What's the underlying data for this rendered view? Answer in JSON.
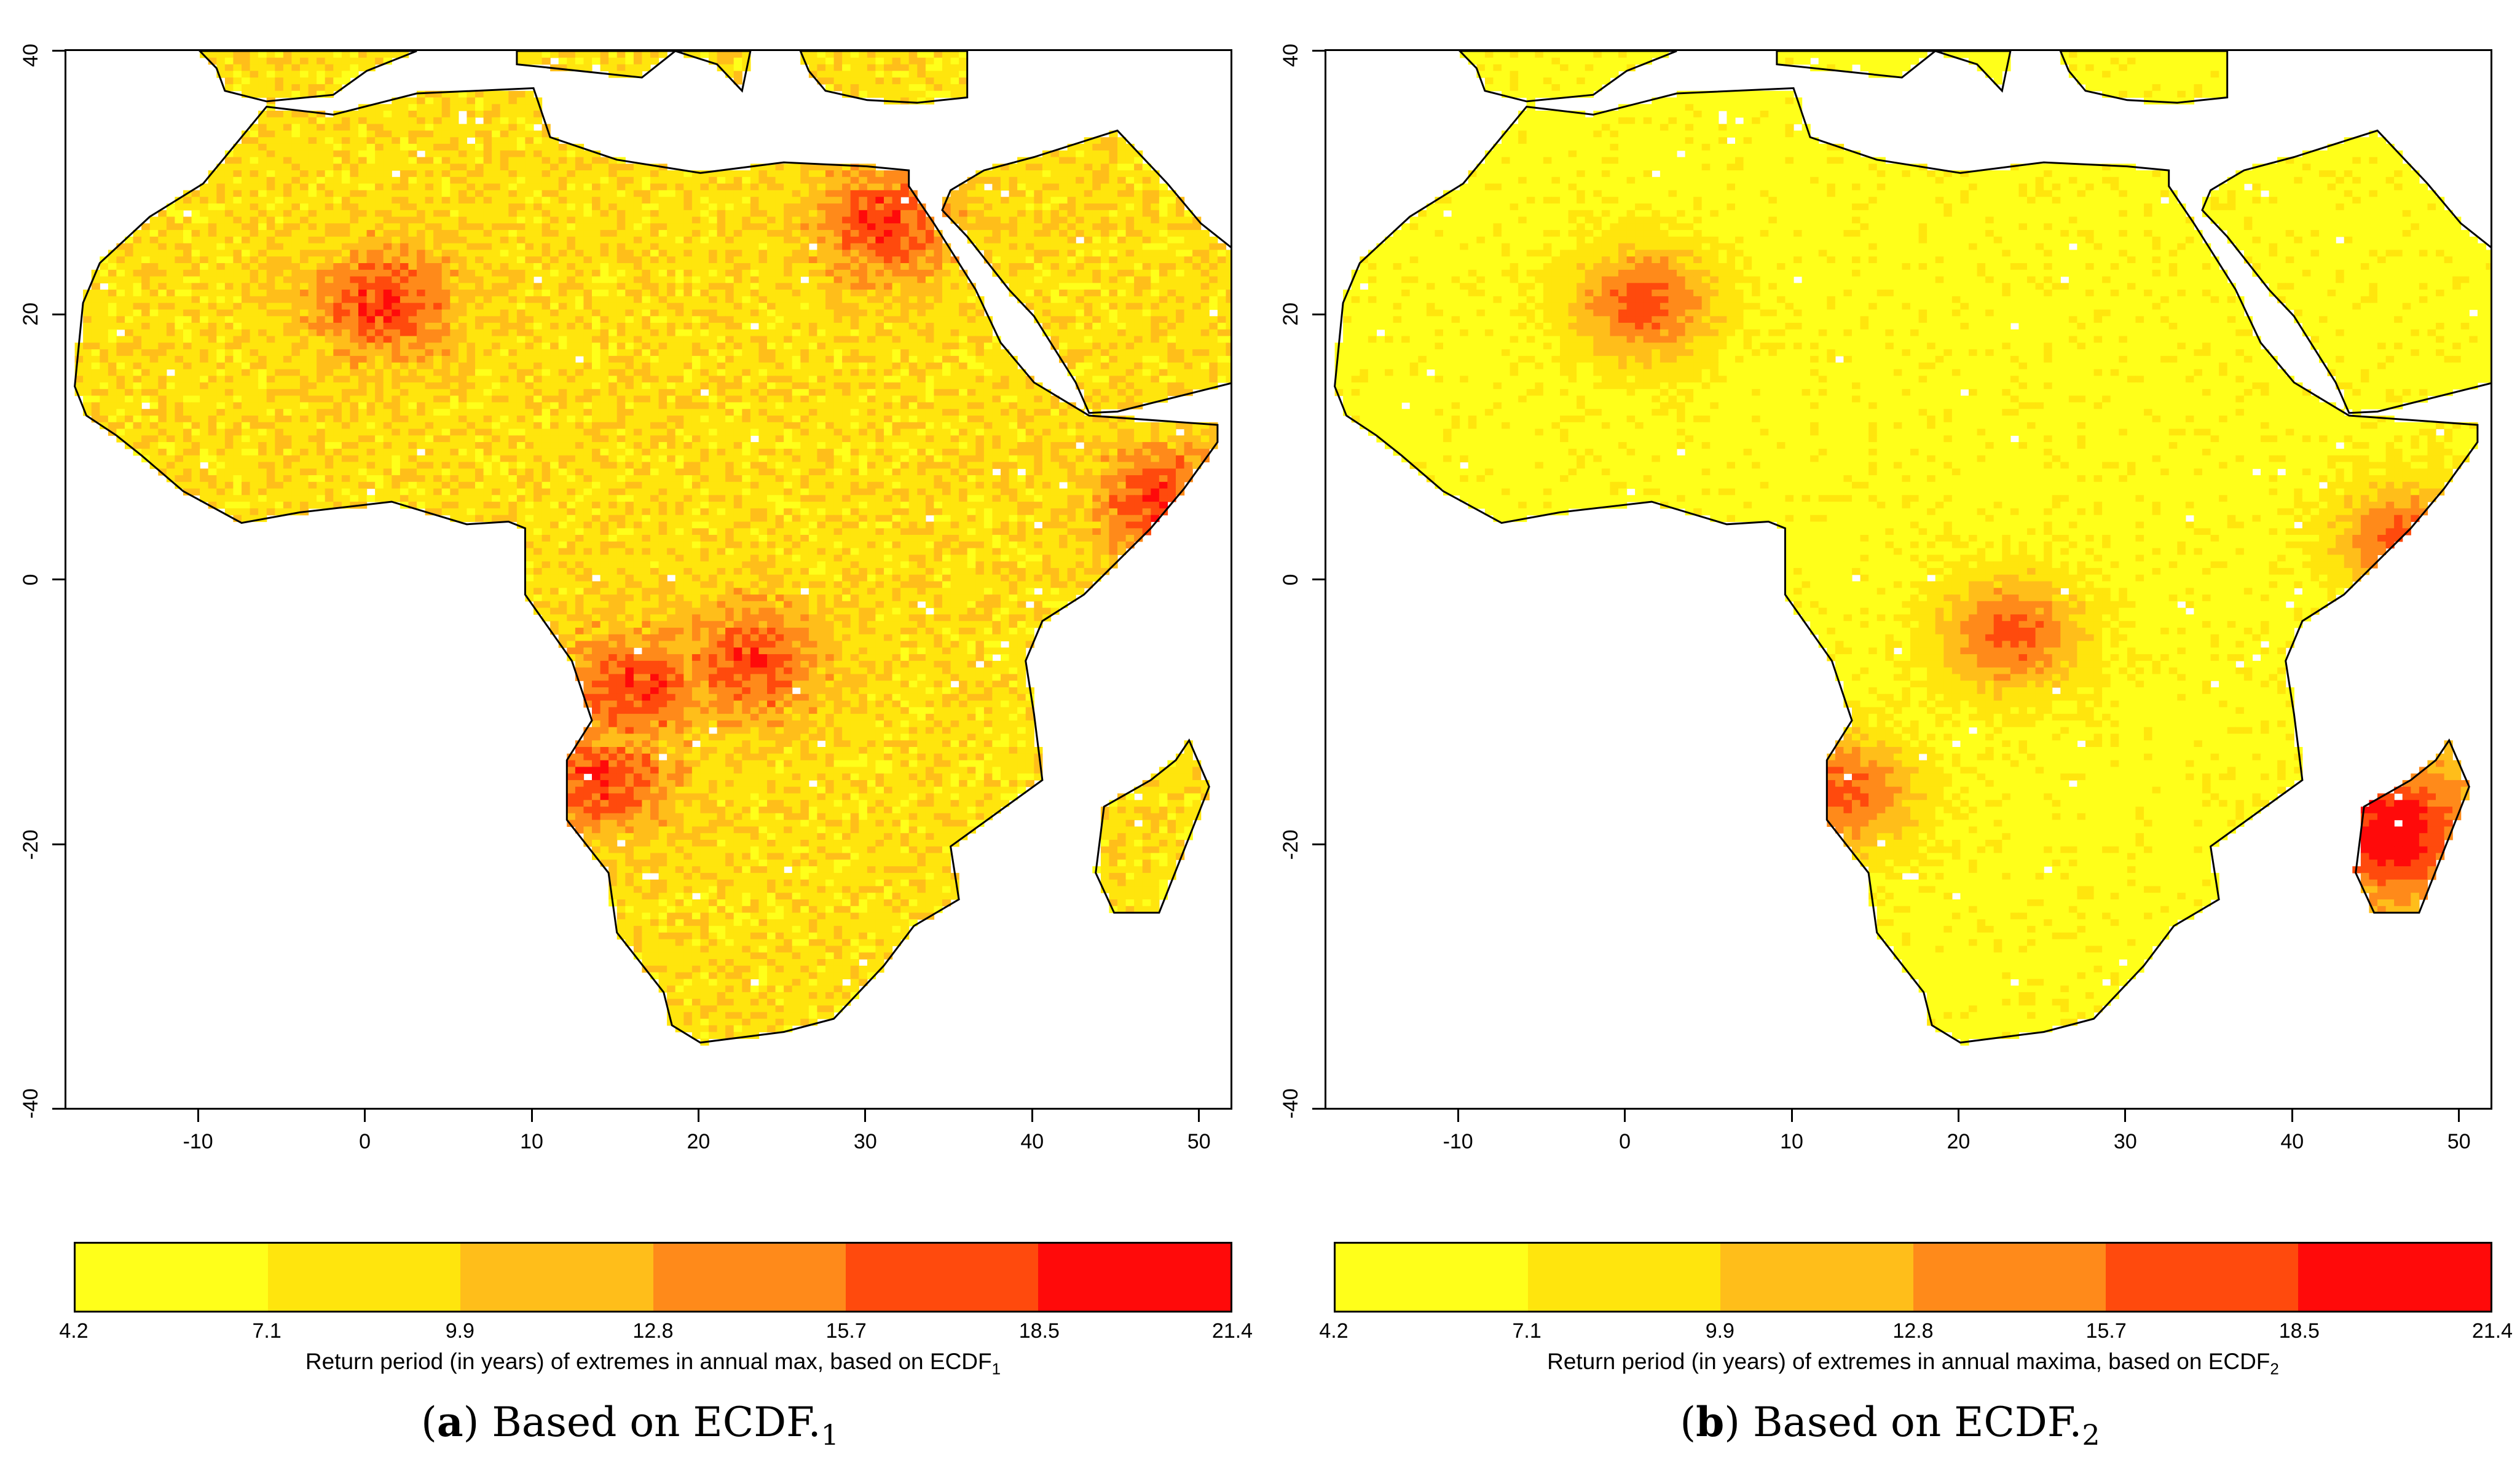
{
  "palette": [
    "#FFFF1A",
    "#FFE50D",
    "#FFBE1A",
    "#FF8A1A",
    "#FF4A0D",
    "#FF0A0A"
  ],
  "panels": [
    {
      "caption_letter": "a",
      "caption_text": "Based on ECDF.",
      "caption_sub": "1",
      "colorbar_title": "Return period (in years) of extremes in annual max, based on ECDF",
      "colorbar_sub": "1",
      "scenario": "a"
    },
    {
      "caption_letter": "b",
      "caption_text": "Based on ECDF.",
      "caption_sub": "2",
      "colorbar_title": "Return period (in years) of extremes in annual maxima, based on ECDF",
      "colorbar_sub": "2",
      "scenario": "b"
    }
  ],
  "chart_data": [
    {
      "type": "heatmap",
      "title": "Based on ECDF.1",
      "xlim": [
        -18,
        52
      ],
      "ylim": [
        -40,
        40
      ],
      "x_ticks": [
        "-10",
        "0",
        "10",
        "20",
        "30",
        "40",
        "50"
      ],
      "y_ticks": [
        "40",
        "20",
        "0",
        "-20",
        "-40"
      ],
      "colorbar_breaks": [
        "4.2",
        "7.1",
        "9.9",
        "12.8",
        "15.7",
        "18.5",
        "21.4"
      ],
      "colorbar_label": "Return period (in years) of extremes in annual max, based on ECDF1",
      "hotspots_lonlat": [
        [
          48,
          6
        ],
        [
          23,
          -6
        ],
        [
          14,
          -15
        ],
        [
          16,
          -8
        ],
        [
          1,
          21
        ],
        [
          31,
          27
        ]
      ]
    },
    {
      "type": "heatmap",
      "title": "Based on ECDF.2",
      "xlim": [
        -18,
        52
      ],
      "ylim": [
        -40,
        40
      ],
      "x_ticks": [
        "-10",
        "0",
        "10",
        "20",
        "30",
        "40",
        "50"
      ],
      "y_ticks": [
        "40",
        "20",
        "0",
        "-20",
        "-40"
      ],
      "colorbar_breaks": [
        "4.2",
        "7.1",
        "9.9",
        "12.8",
        "15.7",
        "18.5",
        "21.4"
      ],
      "colorbar_label": "Return period (in years) of extremes in annual maxima, based on ECDF2",
      "hotspots_lonlat": [
        [
          47,
          3
        ],
        [
          46,
          -19
        ],
        [
          23,
          -4
        ],
        [
          13,
          -16
        ],
        [
          1,
          21
        ]
      ]
    }
  ]
}
